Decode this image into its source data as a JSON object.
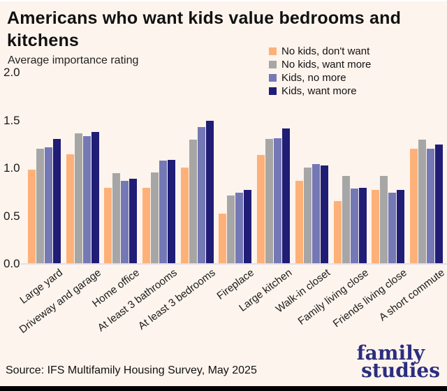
{
  "chart_data": {
    "type": "bar",
    "title": "Americans who want kids value bedrooms and kitchens",
    "subtitle": "Average importance rating",
    "categories": [
      "Large yard",
      "Driveway and garage",
      "Home office",
      "At least 3 bathrooms",
      "At least 3 bedrooms",
      "Fireplace",
      "Large kitchen",
      "Walk-in closet",
      "Family living close",
      "Friends living close",
      "A short commute"
    ],
    "series": [
      {
        "name": "No kids, don't want",
        "color": "#fdb178",
        "values": [
          0.98,
          1.14,
          0.79,
          0.79,
          1.0,
          0.52,
          1.13,
          0.86,
          0.65,
          0.77,
          1.2
        ]
      },
      {
        "name": "No kids, want more",
        "color": "#a6a6a6",
        "values": [
          1.2,
          1.36,
          0.94,
          0.95,
          1.29,
          0.71,
          1.3,
          1.0,
          0.91,
          0.91,
          1.29
        ]
      },
      {
        "name": "Kids, no more",
        "color": "#7478b4",
        "values": [
          1.21,
          1.33,
          0.86,
          1.07,
          1.42,
          0.74,
          1.31,
          1.04,
          0.78,
          0.74,
          1.2
        ]
      },
      {
        "name": "Kids, want more",
        "color": "#201d76",
        "values": [
          1.3,
          1.37,
          0.88,
          1.08,
          1.49,
          0.77,
          1.41,
          1.02,
          0.79,
          0.77,
          1.24
        ]
      }
    ],
    "ylim": [
      0,
      2.0
    ],
    "yticks": [
      2.0,
      1.5,
      1.0,
      0.5,
      0.0
    ],
    "grid": false,
    "legend_position": "top-right",
    "background_color": "#fdf4ed"
  },
  "footer": {
    "source": "Source: IFS Multifamily Housing Survey, May 2025",
    "logo": {
      "line1": "family",
      "line2": "studies",
      "color": "#2b2d7f"
    }
  }
}
